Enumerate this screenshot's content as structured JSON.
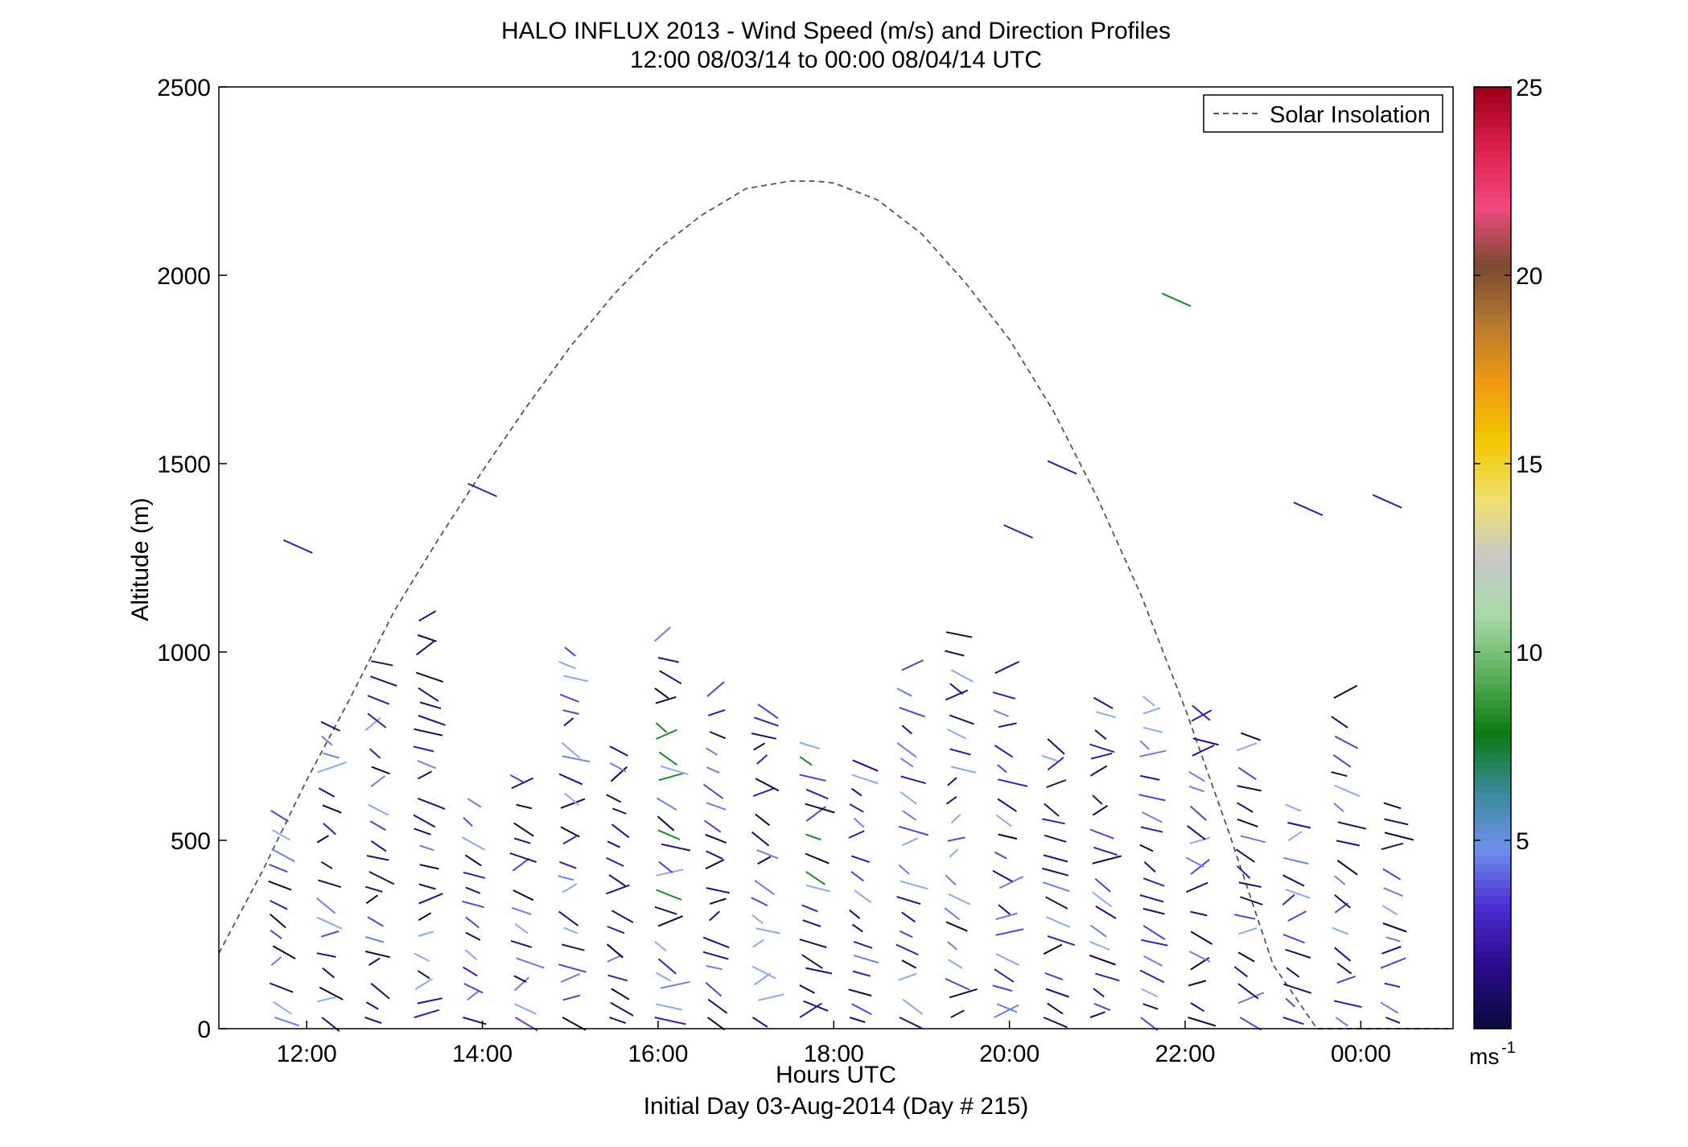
{
  "chart_data": {
    "type": "scatter",
    "title": "HALO INFLUX 2013 - Wind Speed (m/s) and Direction Profiles",
    "subtitle": "12:00 08/03/14 to 00:00 08/04/14  UTC",
    "xlabel": "Hours UTC",
    "xlabel2": "Initial Day 03-Aug-2014 (Day # 215)",
    "ylabel": "Altitude (m)",
    "xlim": [
      11.0,
      25.05
    ],
    "ylim": [
      0,
      2500
    ],
    "x_ticks": [
      {
        "value": 12,
        "label": "12:00"
      },
      {
        "value": 14,
        "label": "14:00"
      },
      {
        "value": 16,
        "label": "16:00"
      },
      {
        "value": 18,
        "label": "18:00"
      },
      {
        "value": 20,
        "label": "20:00"
      },
      {
        "value": 22,
        "label": "22:00"
      },
      {
        "value": 24,
        "label": "00:00"
      }
    ],
    "y_ticks": [
      0,
      500,
      1000,
      1500,
      2000,
      2500
    ],
    "legend": {
      "entries": [
        "Solar Insolation"
      ],
      "placement": "top-right"
    },
    "colorbar": {
      "range": [
        0,
        25
      ],
      "ticks": [
        5,
        10,
        15,
        20,
        25
      ],
      "unit_label": "ms",
      "unit_exponent": "-1",
      "colors": [
        "#0b0b40",
        "#2a0a8a",
        "#4a2bd0",
        "#6f8fee",
        "#3a8a9a",
        "#0a7a10",
        "#5cb05c",
        "#a8d8a8",
        "#c8c8c8",
        "#f0e070",
        "#f2c800",
        "#f09a10",
        "#b87a30",
        "#7a4a30",
        "#f04a80",
        "#e02050",
        "#a0001a"
      ]
    },
    "series": [
      {
        "name": "Solar Insolation",
        "style": "dashed",
        "color": "#555555",
        "x": [
          11.0,
          11.5,
          12.0,
          12.5,
          13.0,
          13.5,
          14.0,
          14.5,
          15.0,
          15.5,
          16.0,
          16.5,
          17.0,
          17.5,
          17.8,
          18.0,
          18.5,
          19.0,
          19.5,
          20.0,
          20.5,
          21.0,
          21.5,
          22.0,
          22.5,
          23.0,
          23.5,
          24.0,
          24.5,
          25.0
        ],
        "y": [
          200,
          420,
          660,
          880,
          1110,
          1300,
          1480,
          1650,
          1810,
          1950,
          2070,
          2160,
          2230,
          2250,
          2250,
          2245,
          2200,
          2110,
          1980,
          1830,
          1640,
          1410,
          1150,
          850,
          520,
          170,
          0,
          0,
          0,
          0
        ]
      }
    ]
  }
}
